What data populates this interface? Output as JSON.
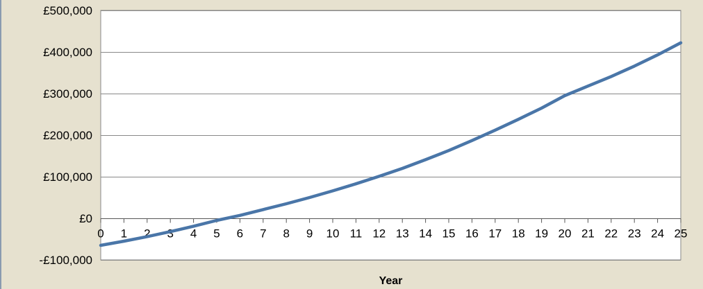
{
  "chart_data": {
    "type": "line",
    "title": "",
    "xlabel": "Year",
    "ylabel": "",
    "x": [
      0,
      1,
      2,
      3,
      4,
      5,
      6,
      7,
      8,
      9,
      10,
      11,
      12,
      13,
      14,
      15,
      16,
      17,
      18,
      19,
      20,
      21,
      22,
      23,
      24,
      25
    ],
    "series": [
      {
        "values": [
          -65000,
          -55000,
          -44000,
          -32000,
          -19000,
          -5000,
          7000,
          21000,
          35000,
          50000,
          66000,
          83000,
          101000,
          120000,
          141000,
          163000,
          187000,
          212000,
          238000,
          265000,
          295000,
          318000,
          341000,
          366000,
          393000,
          422000
        ]
      }
    ],
    "ylim": [
      -100000,
      500000
    ],
    "y_ticks": [
      500000,
      400000,
      300000,
      200000,
      100000,
      0,
      -100000
    ],
    "y_tick_labels": [
      "£500,000",
      "£400,000",
      "£300,000",
      "£200,000",
      "£100,000",
      "£0",
      "-£100,000"
    ],
    "x_tick_labels": [
      "0",
      "1",
      "2",
      "3",
      "4",
      "5",
      "6",
      "7",
      "8",
      "9",
      "10",
      "11",
      "12",
      "13",
      "14",
      "15",
      "16",
      "17",
      "18",
      "19",
      "20",
      "21",
      "22",
      "23",
      "24",
      "25"
    ],
    "grid": "horizontal",
    "legend": "none",
    "colors": {
      "background": "#e6e1cf",
      "plot_area": "#ffffff",
      "line": "#4a76a8",
      "gridline": "#888888"
    }
  }
}
